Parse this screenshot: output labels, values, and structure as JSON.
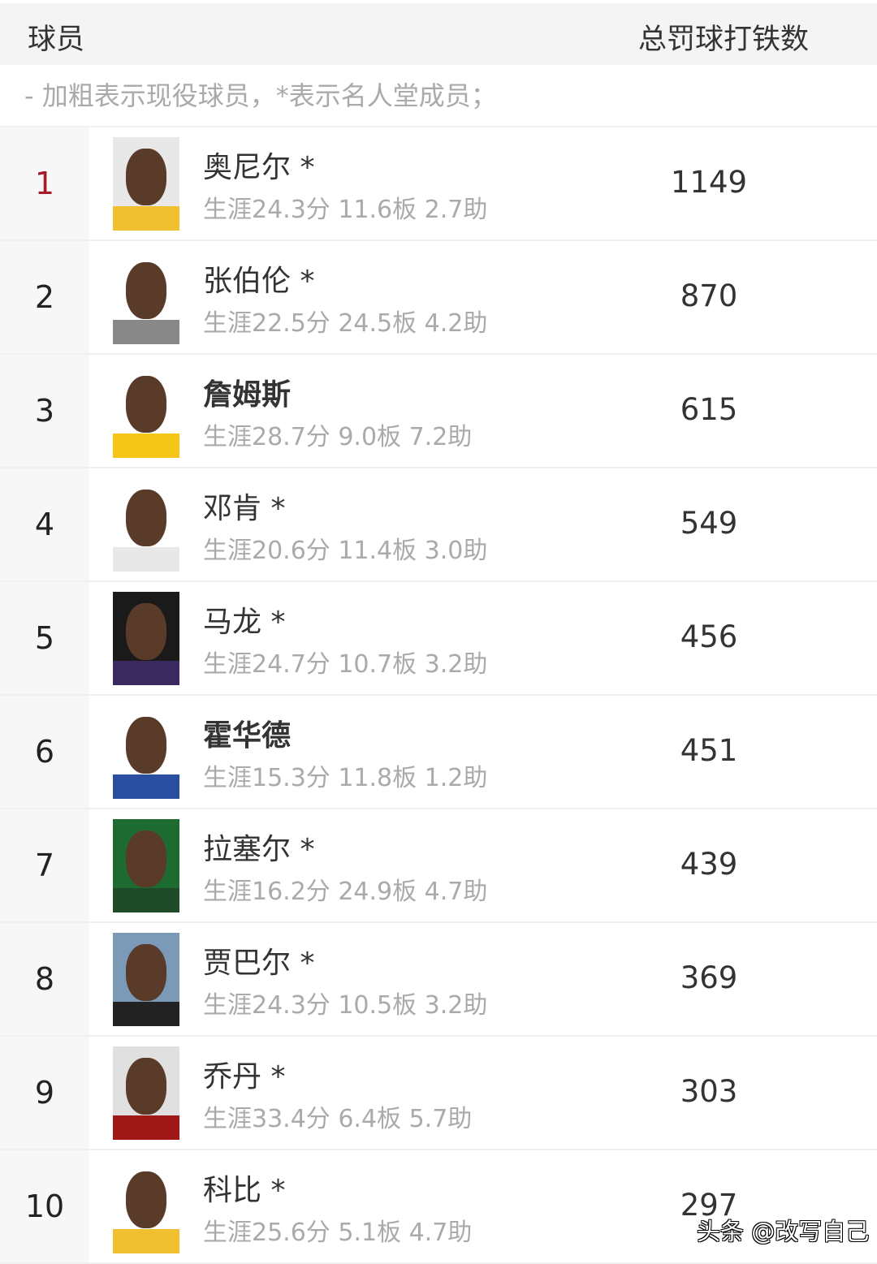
{
  "header": {
    "col_player": "球员",
    "col_value": "总罚球打铁数"
  },
  "note": "- 加粗表示现役球员，*表示名人堂成员；",
  "rows": [
    {
      "rank": "1",
      "name": "奥尼尔 *",
      "bold": false,
      "stats": "生涯24.3分 11.6板 2.7助",
      "value": "1149",
      "bg": "#e8e8e8",
      "shirt": "#f0c030"
    },
    {
      "rank": "2",
      "name": "张伯伦 *",
      "bold": false,
      "stats": "生涯22.5分 24.5板 4.2助",
      "value": "870",
      "bg": "#ffffff",
      "shirt": "#888888"
    },
    {
      "rank": "3",
      "name": "詹姆斯",
      "bold": true,
      "stats": "生涯28.7分 9.0板 7.2助",
      "value": "615",
      "bg": "#ffffff",
      "shirt": "#f5c518"
    },
    {
      "rank": "4",
      "name": "邓肯 *",
      "bold": false,
      "stats": "生涯20.6分 11.4板 3.0助",
      "value": "549",
      "bg": "#ffffff",
      "shirt": "#e8e8e8"
    },
    {
      "rank": "5",
      "name": "马龙 *",
      "bold": false,
      "stats": "生涯24.7分 10.7板 3.2助",
      "value": "456",
      "bg": "#1a1a1a",
      "shirt": "#3a2a60"
    },
    {
      "rank": "6",
      "name": "霍华德",
      "bold": true,
      "stats": "生涯15.3分 11.8板 1.2助",
      "value": "451",
      "bg": "#ffffff",
      "shirt": "#2a4fa0"
    },
    {
      "rank": "7",
      "name": "拉塞尔 *",
      "bold": false,
      "stats": "生涯16.2分 24.9板 4.7助",
      "value": "439",
      "bg": "#1e6b32",
      "shirt": "#1e4a28"
    },
    {
      "rank": "8",
      "name": "贾巴尔 *",
      "bold": false,
      "stats": "生涯24.3分 10.5板 3.2助",
      "value": "369",
      "bg": "#7a9ab8",
      "shirt": "#222222"
    },
    {
      "rank": "9",
      "name": "乔丹 *",
      "bold": false,
      "stats": "生涯33.4分 6.4板 5.7助",
      "value": "303",
      "bg": "#e0e0e0",
      "shirt": "#a01818"
    },
    {
      "rank": "10",
      "name": "科比 *",
      "bold": false,
      "stats": "生涯25.6分 5.1板 4.7助",
      "value": "297",
      "bg": "#ffffff",
      "shirt": "#f0c030"
    }
  ],
  "watermark": "头条 @改写自己"
}
